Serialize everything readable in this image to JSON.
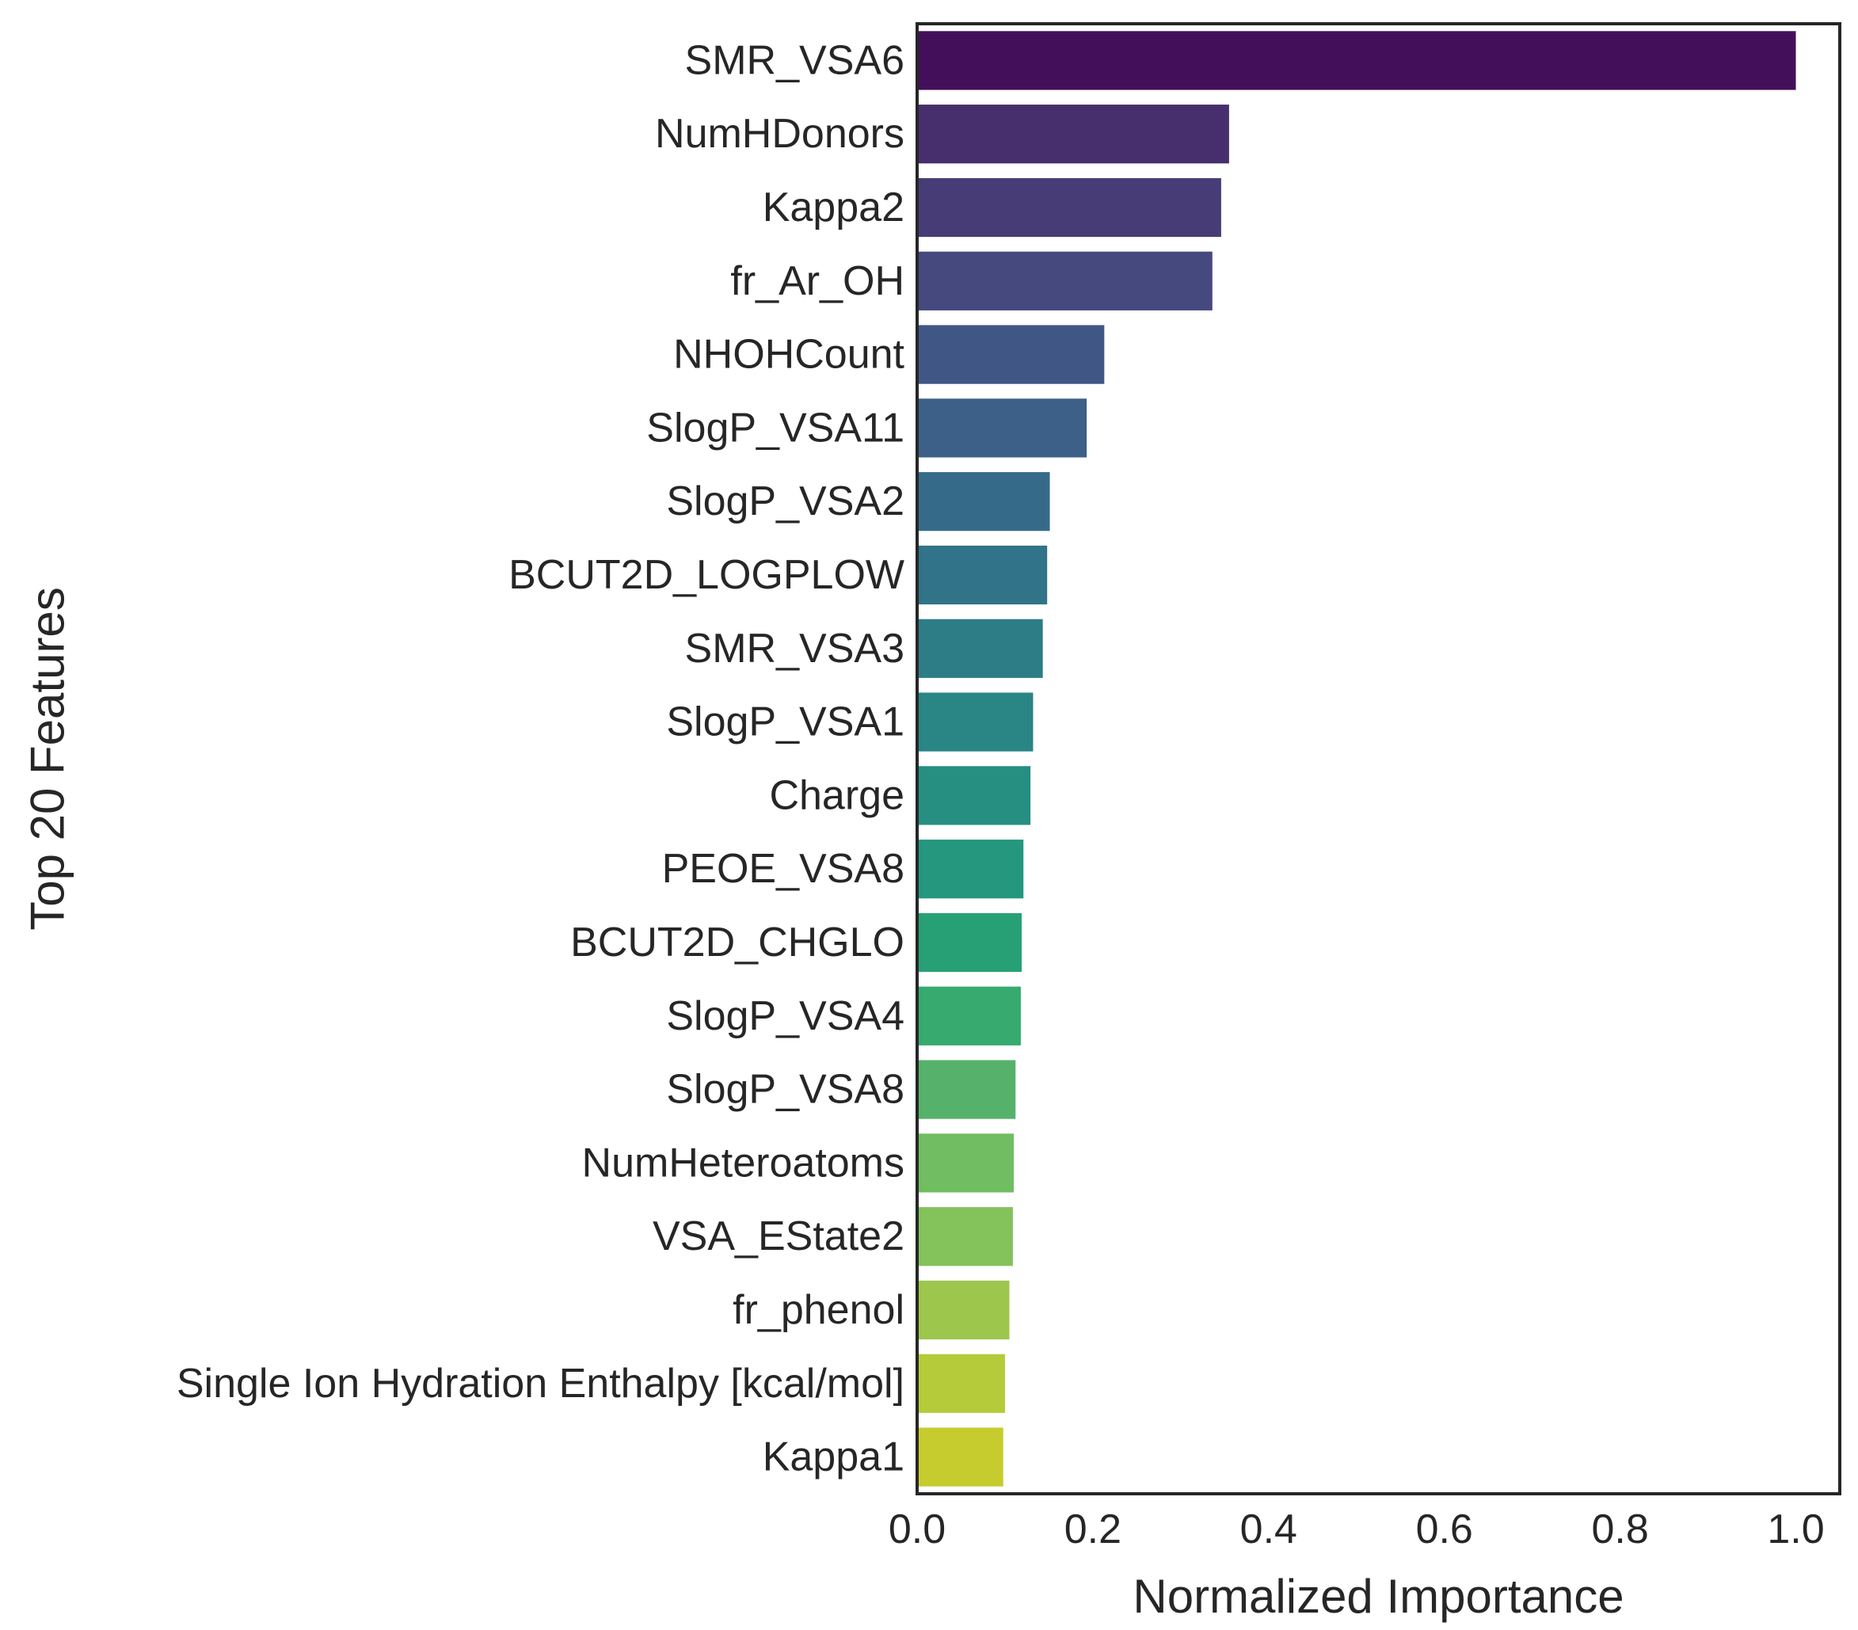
{
  "chart_data": {
    "type": "bar",
    "orientation": "horizontal",
    "title": "",
    "xlabel": "Normalized Importance",
    "ylabel": "Top 20 Features",
    "xlim": [
      0.0,
      1.05
    ],
    "xticks": [
      "0.0",
      "0.2",
      "0.4",
      "0.6",
      "0.8",
      "1.0"
    ],
    "grid": false,
    "legend": "none",
    "colormap": "viridis",
    "categories": [
      "SMR_VSA6",
      "NumHDonors",
      "Kappa2",
      "fr_Ar_OH",
      "NHOHCount",
      "SlogP_VSA11",
      "SlogP_VSA2",
      "BCUT2D_LOGPLOW",
      "SMR_VSA3",
      "SlogP_VSA1",
      "Charge",
      "PEOE_VSA8",
      "BCUT2D_CHGLO",
      "SlogP_VSA4",
      "SlogP_VSA8",
      "NumHeteroatoms",
      "VSA_EState2",
      "fr_phenol",
      "Single Ion Hydration Enthalpy [kcal/mol]",
      "Kappa1"
    ],
    "values": [
      1.0,
      0.355,
      0.346,
      0.336,
      0.213,
      0.193,
      0.151,
      0.148,
      0.143,
      0.132,
      0.129,
      0.121,
      0.119,
      0.118,
      0.112,
      0.11,
      0.109,
      0.105,
      0.1,
      0.098
    ],
    "colors": [
      "#440f5a",
      "#472e6c",
      "#473c76",
      "#45497e",
      "#405684",
      "#3c6087",
      "#356b89",
      "#317388",
      "#2d7d87",
      "#2a8585",
      "#268f82",
      "#24977e",
      "#28a076",
      "#37aa6f",
      "#56b26a",
      "#70bd62",
      "#84c25c",
      "#9dc64c",
      "#b6cb39",
      "#c7cc2e"
    ]
  }
}
